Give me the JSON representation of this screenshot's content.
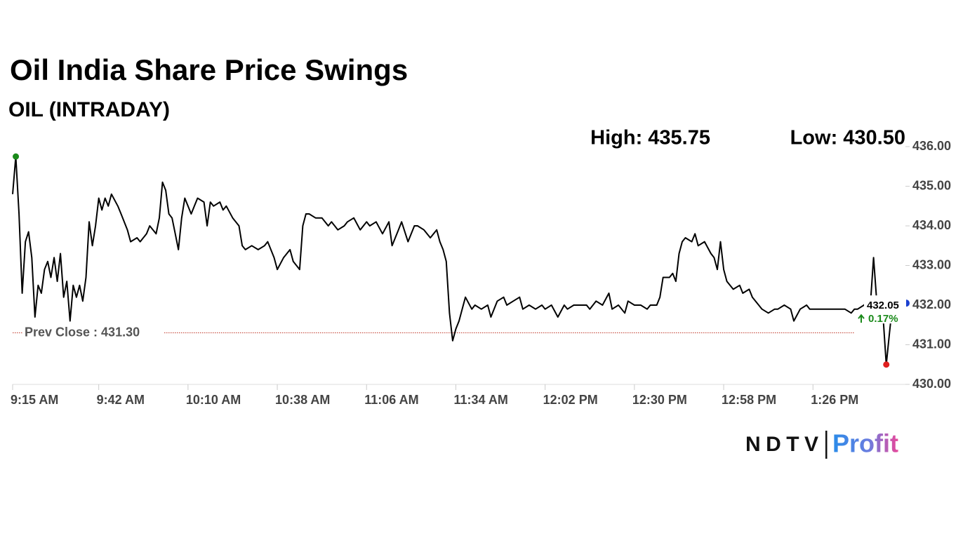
{
  "chart_data": {
    "type": "line",
    "title": "Oil India Share Price Swings",
    "subtitle": "OIL (INTRADAY)",
    "high": {
      "label": "High: 435.75",
      "value": 435.75,
      "x": "9:16 AM"
    },
    "low": {
      "label": "Low: 430.50",
      "value": 430.5,
      "x": "1:49 PM"
    },
    "prev_close": {
      "label": "Prev Close : 431.30",
      "value": 431.3
    },
    "last": {
      "label": "432.05",
      "value": 432.05
    },
    "change": {
      "label": "0.17%",
      "value": 0.17
    },
    "color": "#000000",
    "x": [
      "9:15 AM",
      "9:16 AM",
      "9:17 AM",
      "9:18 AM",
      "9:19 AM",
      "9:20 AM",
      "9:21 AM",
      "9:22 AM",
      "9:23 AM",
      "9:24 AM",
      "9:25 AM",
      "9:26 AM",
      "9:27 AM",
      "9:28 AM",
      "9:29 AM",
      "9:30 AM",
      "9:31 AM",
      "9:32 AM",
      "9:33 AM",
      "9:34 AM",
      "9:35 AM",
      "9:36 AM",
      "9:37 AM",
      "9:38 AM",
      "9:39 AM",
      "9:40 AM",
      "9:41 AM",
      "9:42 AM",
      "9:43 AM",
      "9:44 AM",
      "9:45 AM",
      "9:46 AM",
      "9:48 AM",
      "9:49 AM",
      "9:51 AM",
      "9:52 AM",
      "9:54 AM",
      "9:55 AM",
      "9:57 AM",
      "9:58 AM",
      "10:00 AM",
      "10:01 AM",
      "10:02 AM",
      "10:03 AM",
      "10:04 AM",
      "10:05 AM",
      "10:06 AM",
      "10:07 AM",
      "10:08 AM",
      "10:09 AM",
      "10:11 AM",
      "10:12 AM",
      "10:13 AM",
      "10:15 AM",
      "10:16 AM",
      "10:17 AM",
      "10:18 AM",
      "10:20 AM",
      "10:21 AM",
      "10:22 AM",
      "10:24 AM",
      "10:26 AM",
      "10:27 AM",
      "10:28 AM",
      "10:30 AM",
      "10:32 AM",
      "10:34 AM",
      "10:35 AM",
      "10:37 AM",
      "10:38 AM",
      "10:40 AM",
      "10:42 AM",
      "10:43 AM",
      "10:45 AM",
      "10:46 AM",
      "10:47 AM",
      "10:48 AM",
      "10:50 AM",
      "10:52 AM",
      "10:54 AM",
      "10:55 AM",
      "10:57 AM",
      "10:59 AM",
      "11:00 AM",
      "11:02 AM",
      "11:04 AM",
      "11:06 AM",
      "11:07 AM",
      "11:09 AM",
      "11:11 AM",
      "11:13 AM",
      "11:14 AM",
      "11:16 AM",
      "11:17 AM",
      "11:19 AM",
      "11:21 AM",
      "11:22 AM",
      "11:24 AM",
      "11:26 AM",
      "11:28 AM",
      "11:29 AM",
      "11:30 AM",
      "11:31 AM",
      "11:32 AM",
      "11:33 AM",
      "11:34 AM",
      "11:35 AM",
      "11:36 AM",
      "11:37 AM",
      "11:39 AM",
      "11:40 AM",
      "11:42 AM",
      "11:44 AM",
      "11:45 AM",
      "11:47 AM",
      "11:49 AM",
      "11:50 AM",
      "11:52 AM",
      "11:54 AM",
      "11:55 AM",
      "11:57 AM",
      "11:59 AM",
      "12:01 PM",
      "12:02 PM",
      "12:04 PM",
      "12:06 PM",
      "12:08 PM",
      "12:09 PM",
      "12:11 PM",
      "12:13 PM",
      "12:15 PM",
      "12:16 PM",
      "12:18 PM",
      "12:20 PM",
      "12:22 PM",
      "12:23 PM",
      "12:25 PM",
      "12:27 PM",
      "12:28 PM",
      "12:30 PM",
      "12:32 PM",
      "12:34 PM",
      "12:35 PM",
      "12:37 PM",
      "12:38 PM",
      "12:39 PM",
      "12:41 PM",
      "12:42 PM",
      "12:43 PM",
      "12:44 PM",
      "12:45 PM",
      "12:46 PM",
      "12:48 PM",
      "12:49 PM",
      "12:50 PM",
      "12:52 PM",
      "12:54 PM",
      "12:55 PM",
      "12:56 PM",
      "12:57 PM",
      "12:58 PM",
      "12:59 PM",
      "1:01 PM",
      "1:03 PM",
      "1:04 PM",
      "1:06 PM",
      "1:07 PM",
      "1:09 PM",
      "1:10 PM",
      "1:12 PM",
      "1:14 PM",
      "1:15 PM",
      "1:17 PM",
      "1:19 PM",
      "1:20 PM",
      "1:22 PM",
      "1:24 PM",
      "1:25 PM",
      "1:27 PM",
      "1:29 PM",
      "1:31 PM",
      "1:33 PM",
      "1:34 PM",
      "1:36 PM",
      "1:38 PM",
      "1:39 PM",
      "1:40 PM",
      "1:42 PM",
      "1:43 PM",
      "1:44 PM",
      "1:45 PM",
      "1:46 PM",
      "1:47 PM",
      "1:48 PM",
      "1:49 PM",
      "1:50 PM",
      "1:51 PM"
    ],
    "values": [
      434.8,
      435.75,
      434.3,
      432.3,
      433.6,
      433.85,
      433.2,
      431.7,
      432.5,
      432.3,
      432.9,
      433.1,
      432.7,
      433.2,
      432.6,
      433.3,
      432.2,
      432.6,
      431.6,
      432.5,
      432.2,
      432.5,
      432.1,
      432.7,
      434.1,
      433.5,
      434.0,
      434.7,
      434.4,
      434.7,
      434.5,
      434.8,
      434.5,
      434.3,
      433.9,
      433.6,
      433.7,
      433.6,
      433.8,
      434.0,
      433.8,
      434.2,
      435.1,
      434.9,
      434.3,
      434.2,
      433.8,
      433.4,
      434.2,
      434.7,
      434.3,
      434.5,
      434.7,
      434.6,
      434.0,
      434.6,
      434.5,
      434.6,
      434.4,
      434.5,
      434.2,
      434.0,
      433.5,
      433.4,
      433.5,
      433.4,
      433.5,
      433.6,
      433.2,
      432.9,
      433.2,
      433.4,
      433.1,
      432.9,
      434.0,
      434.3,
      434.3,
      434.2,
      434.2,
      434.0,
      434.1,
      433.9,
      434.0,
      434.1,
      434.2,
      433.9,
      434.1,
      434.0,
      434.1,
      433.8,
      434.1,
      433.5,
      433.9,
      434.1,
      433.6,
      434.0,
      434.0,
      433.9,
      433.7,
      433.9,
      433.6,
      433.4,
      433.1,
      431.8,
      431.1,
      431.4,
      431.6,
      431.9,
      432.2,
      431.9,
      432.0,
      431.9,
      432.0,
      431.7,
      432.1,
      432.2,
      432.0,
      432.1,
      432.2,
      431.9,
      432.0,
      431.9,
      432.0,
      431.9,
      432.0,
      431.7,
      432.0,
      431.9,
      432.0,
      432.0,
      432.0,
      431.9,
      432.1,
      432.0,
      432.3,
      431.9,
      432.0,
      431.8,
      432.1,
      432.0,
      432.0,
      431.9,
      432.0,
      432.0,
      432.2,
      432.7,
      432.7,
      432.8,
      432.6,
      433.3,
      433.6,
      433.7,
      433.6,
      433.8,
      433.5,
      433.6,
      433.3,
      433.2,
      432.9,
      433.6,
      432.9,
      432.6,
      432.4,
      432.5,
      432.3,
      432.4,
      432.2,
      432.0,
      431.9,
      431.8,
      431.9,
      431.9,
      432.0,
      431.9,
      431.6,
      431.9,
      432.0,
      431.9,
      431.9,
      431.9,
      431.9,
      431.9,
      431.9,
      431.9,
      431.8,
      431.9,
      431.9,
      432.0,
      432.1,
      432.0,
      433.2,
      432.1,
      432.0,
      431.7,
      430.5,
      431.3,
      432.05
    ],
    "xlim": [
      "9:15 AM",
      "1:55 PM"
    ],
    "xticks": [
      "9:15 AM",
      "9:42 AM",
      "10:10 AM",
      "10:38 AM",
      "11:06 AM",
      "11:34 AM",
      "12:02 PM",
      "12:30 PM",
      "12:58 PM",
      "1:26 PM"
    ],
    "ylim": [
      430,
      436
    ],
    "yticks": [
      {
        "value": 430,
        "label": "430.00"
      },
      {
        "value": 431,
        "label": "431.00"
      },
      {
        "value": 432,
        "label": "432.00"
      },
      {
        "value": 433,
        "label": "433.00"
      },
      {
        "value": 434,
        "label": "434.00"
      },
      {
        "value": 435,
        "label": "435.00"
      },
      {
        "value": 436,
        "label": "436.00"
      }
    ],
    "logo": {
      "left": "NDTV",
      "right": "Profit"
    }
  }
}
